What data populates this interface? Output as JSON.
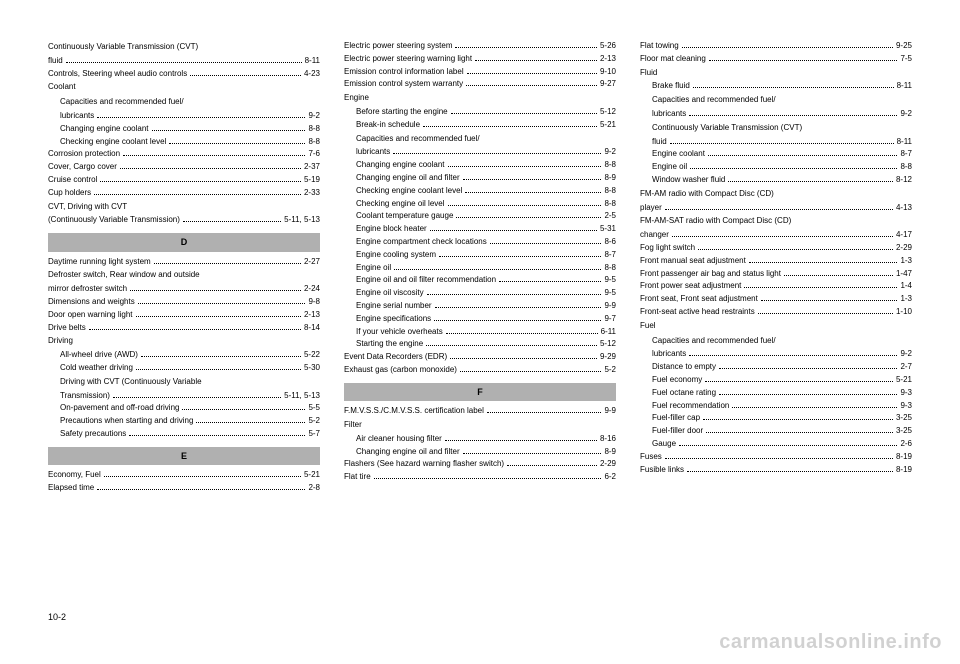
{
  "pageNumber": "10-2",
  "watermark": "carmanualsonline.info",
  "columns": [
    {
      "items": [
        {
          "type": "group",
          "label": "Continuously Variable Transmission (CVT)"
        },
        {
          "type": "entry",
          "label": "fluid",
          "page": "8-11"
        },
        {
          "type": "entry",
          "label": "Controls, Steering wheel audio controls",
          "page": "4-23"
        },
        {
          "type": "group",
          "label": "Coolant"
        },
        {
          "type": "group",
          "indent": true,
          "label": "Capacities and recommended fuel/"
        },
        {
          "type": "entry",
          "indent": true,
          "label": "lubricants",
          "page": "9-2"
        },
        {
          "type": "entry",
          "indent": true,
          "label": "Changing engine coolant",
          "page": "8-8"
        },
        {
          "type": "entry",
          "indent": true,
          "label": "Checking engine coolant level",
          "page": "8-8"
        },
        {
          "type": "entry",
          "label": "Corrosion protection",
          "page": "7-6"
        },
        {
          "type": "entry",
          "label": "Cover, Cargo cover",
          "page": "2-37"
        },
        {
          "type": "entry",
          "label": "Cruise control",
          "page": "5-19"
        },
        {
          "type": "entry",
          "label": "Cup holders",
          "page": "2-33"
        },
        {
          "type": "group",
          "label": "CVT, Driving with CVT"
        },
        {
          "type": "entry",
          "label": "(Continuously Variable Transmission)",
          "page": "5-11, 5-13"
        },
        {
          "type": "header",
          "label": "D"
        },
        {
          "type": "entry",
          "label": "Daytime running light system",
          "page": "2-27"
        },
        {
          "type": "group",
          "label": "Defroster switch, Rear window and outside"
        },
        {
          "type": "entry",
          "label": "mirror defroster switch",
          "page": "2-24"
        },
        {
          "type": "entry",
          "label": "Dimensions and weights",
          "page": "9-8"
        },
        {
          "type": "entry",
          "label": "Door open warning light",
          "page": "2-13"
        },
        {
          "type": "entry",
          "label": "Drive belts",
          "page": "8-14"
        },
        {
          "type": "group",
          "label": "Driving"
        },
        {
          "type": "entry",
          "indent": true,
          "label": "All-wheel drive (AWD)",
          "page": "5-22"
        },
        {
          "type": "entry",
          "indent": true,
          "label": "Cold weather driving",
          "page": "5-30"
        },
        {
          "type": "group",
          "indent": true,
          "label": "Driving with CVT (Continuously Variable"
        },
        {
          "type": "entry",
          "indent": true,
          "label": "Transmission)",
          "page": "5-11, 5-13"
        },
        {
          "type": "entry",
          "indent": true,
          "label": "On-pavement and off-road driving",
          "page": "5-5"
        },
        {
          "type": "entry",
          "indent": true,
          "label": "Precautions when starting and driving",
          "page": "5-2"
        },
        {
          "type": "entry",
          "indent": true,
          "label": "Safety precautions",
          "page": "5-7"
        },
        {
          "type": "header",
          "label": "E"
        },
        {
          "type": "entry",
          "label": "Economy, Fuel",
          "page": "5-21"
        },
        {
          "type": "entry",
          "label": "Elapsed time",
          "page": "2-8"
        }
      ]
    },
    {
      "items": [
        {
          "type": "entry",
          "label": "Electric power steering system",
          "page": "5-26"
        },
        {
          "type": "entry",
          "label": "Electric power steering warning light",
          "page": "2-13"
        },
        {
          "type": "entry",
          "label": "Emission control information label",
          "page": "9-10"
        },
        {
          "type": "entry",
          "label": "Emission control system warranty",
          "page": "9-27"
        },
        {
          "type": "group",
          "label": "Engine"
        },
        {
          "type": "entry",
          "indent": true,
          "label": "Before starting the engine",
          "page": "5-12"
        },
        {
          "type": "entry",
          "indent": true,
          "label": "Break-in schedule",
          "page": "5-21"
        },
        {
          "type": "group",
          "indent": true,
          "label": "Capacities and recommended fuel/"
        },
        {
          "type": "entry",
          "indent": true,
          "label": "lubricants",
          "page": "9-2"
        },
        {
          "type": "entry",
          "indent": true,
          "label": "Changing engine coolant",
          "page": "8-8"
        },
        {
          "type": "entry",
          "indent": true,
          "label": "Changing engine oil and filter",
          "page": "8-9"
        },
        {
          "type": "entry",
          "indent": true,
          "label": "Checking engine coolant level",
          "page": "8-8"
        },
        {
          "type": "entry",
          "indent": true,
          "label": "Checking engine oil level",
          "page": "8-8"
        },
        {
          "type": "entry",
          "indent": true,
          "label": "Coolant temperature gauge",
          "page": "2-5"
        },
        {
          "type": "entry",
          "indent": true,
          "label": "Engine block heater",
          "page": "5-31"
        },
        {
          "type": "entry",
          "indent": true,
          "label": "Engine compartment check locations",
          "page": "8-6"
        },
        {
          "type": "entry",
          "indent": true,
          "label": "Engine cooling system",
          "page": "8-7"
        },
        {
          "type": "entry",
          "indent": true,
          "label": "Engine oil",
          "page": "8-8"
        },
        {
          "type": "entry",
          "indent": true,
          "label": "Engine oil and oil filter recommendation",
          "page": "9-5"
        },
        {
          "type": "entry",
          "indent": true,
          "label": "Engine oil viscosity",
          "page": "9-5"
        },
        {
          "type": "entry",
          "indent": true,
          "label": "Engine serial number",
          "page": "9-9"
        },
        {
          "type": "entry",
          "indent": true,
          "label": "Engine specifications",
          "page": "9-7"
        },
        {
          "type": "entry",
          "indent": true,
          "label": "If your vehicle overheats",
          "page": "6-11"
        },
        {
          "type": "entry",
          "indent": true,
          "label": "Starting the engine",
          "page": "5-12"
        },
        {
          "type": "entry",
          "label": "Event Data Recorders (EDR)",
          "page": "9-29"
        },
        {
          "type": "entry",
          "label": "Exhaust gas (carbon monoxide)",
          "page": "5-2"
        },
        {
          "type": "header",
          "label": "F"
        },
        {
          "type": "entry",
          "label": "F.M.V.S.S./C.M.V.S.S. certification label",
          "page": "9-9"
        },
        {
          "type": "group",
          "label": "Filter"
        },
        {
          "type": "entry",
          "indent": true,
          "label": "Air cleaner housing filter",
          "page": "8-16"
        },
        {
          "type": "entry",
          "indent": true,
          "label": "Changing engine oil and filter",
          "page": "8-9"
        },
        {
          "type": "entry",
          "label": "Flashers (See hazard warning flasher switch)",
          "page": "2-29"
        },
        {
          "type": "entry",
          "label": "Flat tire",
          "page": "6-2"
        }
      ]
    },
    {
      "items": [
        {
          "type": "entry",
          "label": "Flat towing",
          "page": "9-25"
        },
        {
          "type": "entry",
          "label": "Floor mat cleaning",
          "page": "7-5"
        },
        {
          "type": "group",
          "label": "Fluid"
        },
        {
          "type": "entry",
          "indent": true,
          "label": "Brake fluid",
          "page": "8-11"
        },
        {
          "type": "group",
          "indent": true,
          "label": "Capacities and recommended fuel/"
        },
        {
          "type": "entry",
          "indent": true,
          "label": "lubricants",
          "page": "9-2"
        },
        {
          "type": "group",
          "indent": true,
          "label": "Continuously Variable Transmission (CVT)"
        },
        {
          "type": "entry",
          "indent": true,
          "label": "fluid",
          "page": "8-11"
        },
        {
          "type": "entry",
          "indent": true,
          "label": "Engine coolant",
          "page": "8-7"
        },
        {
          "type": "entry",
          "indent": true,
          "label": "Engine oil",
          "page": "8-8"
        },
        {
          "type": "entry",
          "indent": true,
          "label": "Window washer fluid",
          "page": "8-12"
        },
        {
          "type": "group",
          "label": "FM-AM radio with Compact Disc (CD)"
        },
        {
          "type": "entry",
          "label": "player",
          "page": "4-13"
        },
        {
          "type": "group",
          "label": "FM-AM-SAT radio with Compact Disc (CD)"
        },
        {
          "type": "entry",
          "label": "changer",
          "page": "4-17"
        },
        {
          "type": "entry",
          "label": "Fog light switch",
          "page": "2-29"
        },
        {
          "type": "entry",
          "label": "Front manual seat adjustment",
          "page": "1-3"
        },
        {
          "type": "entry",
          "label": "Front passenger air bag and status light",
          "page": "1-47"
        },
        {
          "type": "entry",
          "label": "Front power seat adjustment",
          "page": "1-4"
        },
        {
          "type": "entry",
          "label": "Front seat, Front seat adjustment",
          "page": "1-3"
        },
        {
          "type": "entry",
          "label": "Front-seat active head restraints",
          "page": "1-10"
        },
        {
          "type": "group",
          "label": "Fuel"
        },
        {
          "type": "group",
          "indent": true,
          "label": "Capacities and recommended fuel/"
        },
        {
          "type": "entry",
          "indent": true,
          "label": "lubricants",
          "page": "9-2"
        },
        {
          "type": "entry",
          "indent": true,
          "label": "Distance to empty",
          "page": "2-7"
        },
        {
          "type": "entry",
          "indent": true,
          "label": "Fuel economy",
          "page": "5-21"
        },
        {
          "type": "entry",
          "indent": true,
          "label": "Fuel octane rating",
          "page": "9-3"
        },
        {
          "type": "entry",
          "indent": true,
          "label": "Fuel recommendation",
          "page": "9-3"
        },
        {
          "type": "entry",
          "indent": true,
          "label": "Fuel-filler cap",
          "page": "3-25"
        },
        {
          "type": "entry",
          "indent": true,
          "label": "Fuel-filler door",
          "page": "3-25"
        },
        {
          "type": "entry",
          "indent": true,
          "label": "Gauge",
          "page": "2-6"
        },
        {
          "type": "entry",
          "label": "Fuses",
          "page": "8-19"
        },
        {
          "type": "entry",
          "label": "Fusible links",
          "page": "8-19"
        }
      ]
    }
  ]
}
